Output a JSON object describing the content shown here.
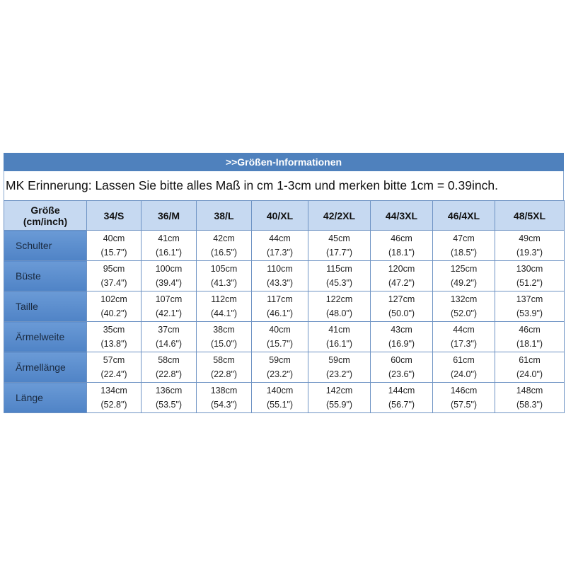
{
  "title": ">>Größen-Informationen",
  "note": "MK Erinnerung: Lassen Sie bitte alles Maß in cm 1-3cm und merken bitte 1cm = 0.39inch.",
  "header": {
    "label_line1": "Größe",
    "label_line2": "(cm/inch)",
    "sizes": [
      "34/S",
      "36/M",
      "38/L",
      "40/XL",
      "42/2XL",
      "44/3XL",
      "46/4XL",
      "48/5XL"
    ]
  },
  "rows": [
    {
      "label": "Schulter",
      "cm": [
        "40cm",
        "41cm",
        "42cm",
        "44cm",
        "45cm",
        "46cm",
        "47cm",
        "49cm"
      ],
      "inch": [
        "(15.7\")",
        "(16.1\")",
        "(16.5\")",
        "(17.3\")",
        "(17.7\")",
        "(18.1\")",
        "(18.5\")",
        "(19.3\")"
      ]
    },
    {
      "label": "Büste",
      "cm": [
        "95cm",
        "100cm",
        "105cm",
        "110cm",
        "115cm",
        "120cm",
        "125cm",
        "130cm"
      ],
      "inch": [
        "(37.4\")",
        "(39.4\")",
        "(41.3\")",
        "(43.3\")",
        "(45.3\")",
        "(47.2\")",
        "(49.2\")",
        "(51.2\")"
      ]
    },
    {
      "label": "Taille",
      "cm": [
        "102cm",
        "107cm",
        "112cm",
        "117cm",
        "122cm",
        "127cm",
        "132cm",
        "137cm"
      ],
      "inch": [
        "(40.2\")",
        "(42.1\")",
        "(44.1\")",
        "(46.1\")",
        "(48.0\")",
        "(50.0\")",
        "(52.0\")",
        "(53.9\")"
      ]
    },
    {
      "label": "Ärmelweite",
      "cm": [
        "35cm",
        "37cm",
        "38cm",
        "40cm",
        "41cm",
        "43cm",
        "44cm",
        "46cm"
      ],
      "inch": [
        "(13.8\")",
        "(14.6\")",
        "(15.0\")",
        "(15.7\")",
        "(16.1\")",
        "(16.9\")",
        "(17.3\")",
        "(18.1\")"
      ]
    },
    {
      "label": "Ärmellänge",
      "cm": [
        "57cm",
        "58cm",
        "58cm",
        "59cm",
        "59cm",
        "60cm",
        "61cm",
        "61cm"
      ],
      "inch": [
        "(22.4\")",
        "(22.8\")",
        "(22.8\")",
        "(23.2\")",
        "(23.2\")",
        "(23.6\")",
        "(24.0\")",
        "(24.0\")"
      ]
    },
    {
      "label": "Länge",
      "cm": [
        "134cm",
        "136cm",
        "138cm",
        "140cm",
        "142cm",
        "144cm",
        "146cm",
        "148cm"
      ],
      "inch": [
        "(52.8\")",
        "(53.5\")",
        "(54.3\")",
        "(55.1\")",
        "(55.9\")",
        "(56.7\")",
        "(57.5\")",
        "(58.3\")"
      ]
    }
  ],
  "colors": {
    "title_bg": "#4f81bd",
    "header_bg": "#c6d9f1",
    "label_bg": "#5b8fd0"
  }
}
